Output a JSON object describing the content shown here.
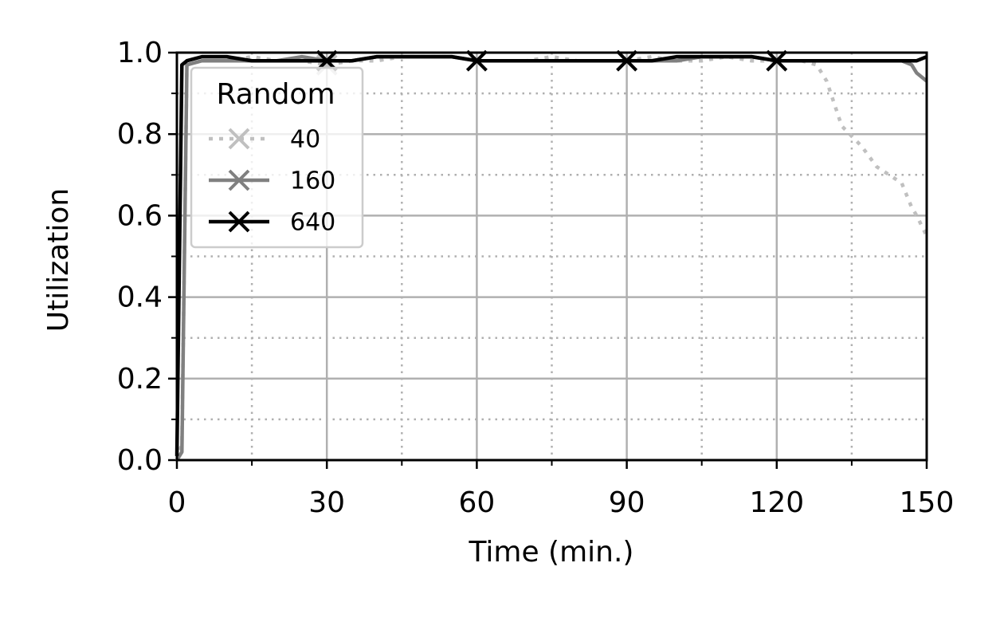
{
  "chart_data": {
    "type": "line",
    "xlabel": "Time (min.)",
    "ylabel": "Utilization",
    "x": [
      0,
      1,
      2,
      5,
      10,
      15,
      20,
      25,
      30,
      35,
      40,
      45,
      50,
      55,
      60,
      65,
      70,
      75,
      80,
      85,
      90,
      95,
      100,
      105,
      110,
      115,
      120,
      125,
      128,
      130,
      133,
      137,
      140,
      145,
      147,
      148,
      150
    ],
    "series": [
      {
        "name": "40",
        "color": "#c0c0c0",
        "linestyle": "dotted",
        "values": [
          0,
          0.04,
          0.97,
          0.98,
          0.98,
          0.99,
          0.98,
          0.98,
          0.97,
          0.98,
          0.98,
          0.99,
          0.99,
          0.99,
          0.98,
          0.98,
          0.98,
          0.99,
          0.98,
          0.98,
          0.98,
          0.99,
          0.98,
          0.98,
          0.99,
          0.98,
          0.98,
          0.98,
          0.97,
          0.93,
          0.82,
          0.77,
          0.72,
          0.68,
          0.62,
          0.6,
          0.55
        ]
      },
      {
        "name": "160",
        "color": "#808080",
        "linestyle": "solid",
        "values": [
          0,
          0.02,
          0.97,
          0.98,
          0.98,
          0.98,
          0.98,
          0.99,
          0.98,
          0.98,
          0.99,
          0.99,
          0.99,
          0.99,
          0.98,
          0.98,
          0.98,
          0.98,
          0.98,
          0.98,
          0.98,
          0.98,
          0.98,
          0.99,
          0.99,
          0.99,
          0.98,
          0.98,
          0.98,
          0.98,
          0.98,
          0.98,
          0.98,
          0.98,
          0.97,
          0.95,
          0.93
        ]
      },
      {
        "name": "640",
        "color": "#000000",
        "linestyle": "solid",
        "values": [
          0.01,
          0.97,
          0.98,
          0.99,
          0.99,
          0.98,
          0.98,
          0.98,
          0.98,
          0.98,
          0.99,
          0.99,
          0.99,
          0.99,
          0.98,
          0.98,
          0.98,
          0.98,
          0.98,
          0.98,
          0.98,
          0.98,
          0.99,
          0.99,
          0.99,
          0.99,
          0.98,
          0.98,
          0.98,
          0.98,
          0.98,
          0.98,
          0.98,
          0.98,
          0.98,
          0.98,
          0.99
        ]
      }
    ],
    "marker_x": [
      30,
      60,
      90,
      120
    ],
    "legend_title": "Random",
    "legend": "upper left",
    "xlim": [
      0,
      150
    ],
    "xticks": [
      0,
      30,
      60,
      90,
      120,
      150
    ],
    "xminorticks": [
      15,
      45,
      75,
      105,
      135
    ],
    "ylim": [
      0,
      1
    ],
    "yticks": [
      {
        "value": 0,
        "label": "0.0"
      },
      0.2,
      0.4,
      0.6,
      0.8,
      {
        "value": 1,
        "label": "1.0"
      }
    ],
    "yminorticks": [
      0.1,
      0.3,
      0.5,
      0.7,
      0.9
    ],
    "grid": true
  }
}
